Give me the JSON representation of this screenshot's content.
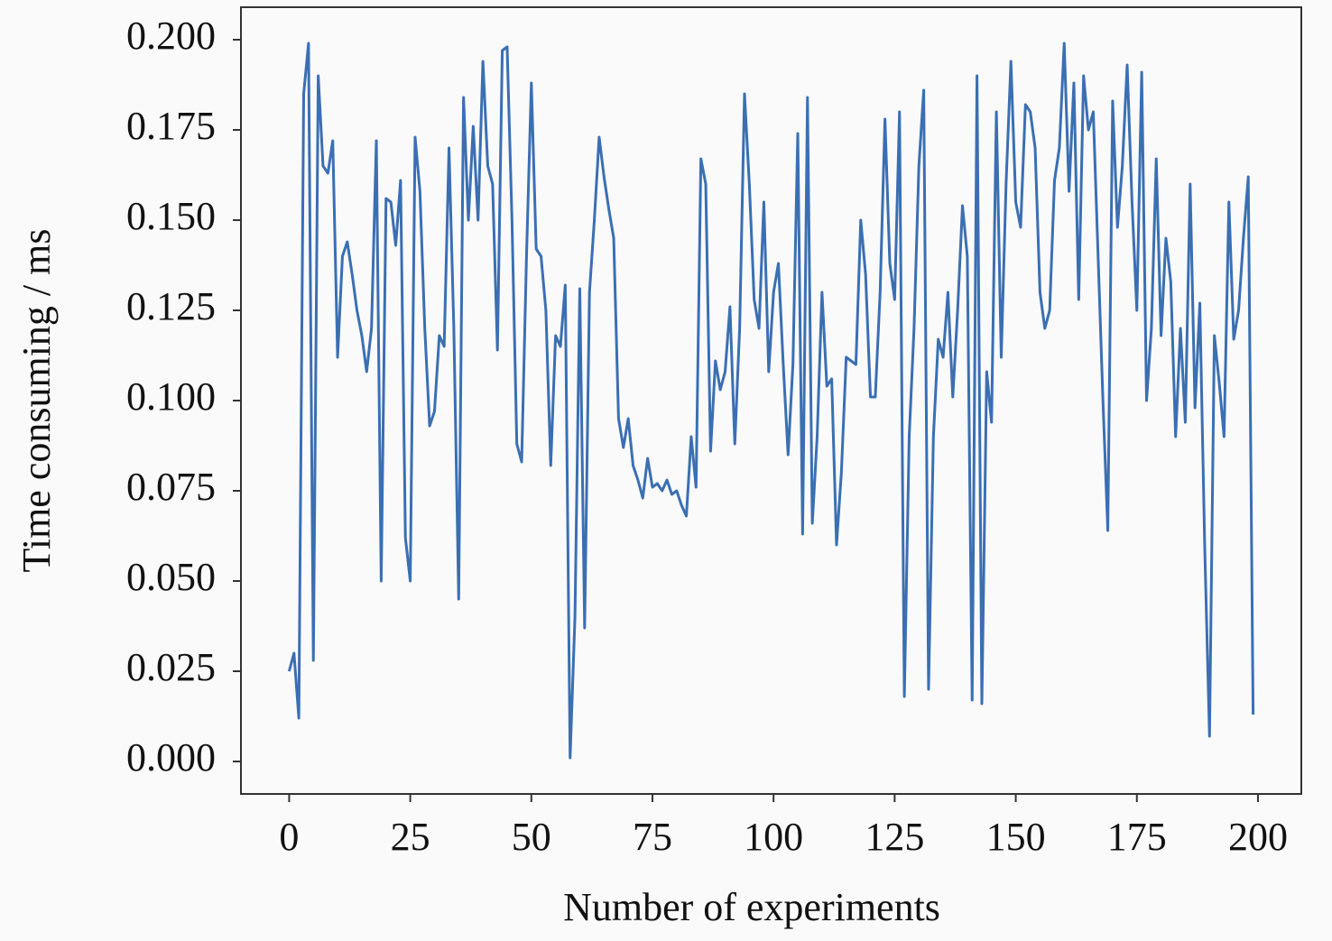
{
  "chart_data": {
    "type": "line",
    "xlabel": "Number of experiments",
    "ylabel": "Time consuming / ms",
    "color": "#3b6fb2",
    "x": [
      0,
      1,
      2,
      3,
      4,
      5,
      6,
      7,
      8,
      9,
      10,
      11,
      12,
      13,
      14,
      15,
      16,
      17,
      18,
      19,
      20,
      21,
      22,
      23,
      24,
      25,
      26,
      27,
      28,
      29,
      30,
      31,
      32,
      33,
      34,
      35,
      36,
      37,
      38,
      39,
      40,
      41,
      42,
      43,
      44,
      45,
      46,
      47,
      48,
      49,
      50,
      51,
      52,
      53,
      54,
      55,
      56,
      57,
      58,
      59,
      60,
      61,
      62,
      63,
      64,
      65,
      66,
      67,
      68,
      69,
      70,
      71,
      72,
      73,
      74,
      75,
      76,
      77,
      78,
      79,
      80,
      81,
      82,
      83,
      84,
      85,
      86,
      87,
      88,
      89,
      90,
      91,
      92,
      93,
      94,
      95,
      96,
      97,
      98,
      99,
      100,
      101,
      102,
      103,
      104,
      105,
      106,
      107,
      108,
      109,
      110,
      111,
      112,
      113,
      114,
      115,
      116,
      117,
      118,
      119,
      120,
      121,
      122,
      123,
      124,
      125,
      126,
      127,
      128,
      129,
      130,
      131,
      132,
      133,
      134,
      135,
      136,
      137,
      138,
      139,
      140,
      141,
      142,
      143,
      144,
      145,
      146,
      147,
      148,
      149,
      150,
      151,
      152,
      153,
      154,
      155,
      156,
      157,
      158,
      159,
      160,
      161,
      162,
      163,
      164,
      165,
      166,
      167,
      168,
      169,
      170,
      171,
      172,
      173,
      174,
      175,
      176,
      177,
      178,
      179,
      180,
      181,
      182,
      183,
      184,
      185,
      186,
      187,
      188,
      189,
      190,
      191,
      192,
      193,
      194,
      195,
      196,
      197,
      198,
      199
    ],
    "values": [
      0.025,
      0.03,
      0.012,
      0.185,
      0.199,
      0.028,
      0.19,
      0.165,
      0.163,
      0.172,
      0.112,
      0.14,
      0.144,
      0.135,
      0.125,
      0.118,
      0.108,
      0.12,
      0.172,
      0.05,
      0.156,
      0.155,
      0.143,
      0.161,
      0.062,
      0.05,
      0.173,
      0.158,
      0.12,
      0.093,
      0.097,
      0.118,
      0.115,
      0.17,
      0.12,
      0.045,
      0.184,
      0.15,
      0.176,
      0.15,
      0.194,
      0.165,
      0.16,
      0.114,
      0.197,
      0.198,
      0.15,
      0.088,
      0.083,
      0.14,
      0.188,
      0.142,
      0.14,
      0.125,
      0.082,
      0.118,
      0.115,
      0.132,
      0.001,
      0.04,
      0.131,
      0.037,
      0.13,
      0.15,
      0.173,
      0.162,
      0.153,
      0.145,
      0.095,
      0.087,
      0.095,
      0.082,
      0.078,
      0.073,
      0.084,
      0.076,
      0.077,
      0.075,
      0.078,
      0.074,
      0.075,
      0.071,
      0.068,
      0.09,
      0.076,
      0.167,
      0.16,
      0.086,
      0.111,
      0.103,
      0.108,
      0.126,
      0.088,
      0.12,
      0.185,
      0.16,
      0.128,
      0.12,
      0.155,
      0.108,
      0.13,
      0.138,
      0.11,
      0.085,
      0.11,
      0.174,
      0.063,
      0.184,
      0.066,
      0.09,
      0.13,
      0.104,
      0.106,
      0.06,
      0.08,
      0.112,
      0.111,
      0.11,
      0.15,
      0.135,
      0.101,
      0.101,
      0.13,
      0.178,
      0.138,
      0.128,
      0.18,
      0.018,
      0.09,
      0.12,
      0.165,
      0.186,
      0.02,
      0.09,
      0.117,
      0.112,
      0.13,
      0.101,
      0.125,
      0.154,
      0.14,
      0.017,
      0.19,
      0.016,
      0.108,
      0.094,
      0.18,
      0.112,
      0.16,
      0.194,
      0.155,
      0.148,
      0.182,
      0.18,
      0.17,
      0.13,
      0.12,
      0.125,
      0.161,
      0.17,
      0.199,
      0.158,
      0.188,
      0.128,
      0.19,
      0.175,
      0.18,
      0.14,
      0.1,
      0.064,
      0.183,
      0.148,
      0.165,
      0.193,
      0.155,
      0.125,
      0.191,
      0.1,
      0.12,
      0.167,
      0.118,
      0.145,
      0.133,
      0.09,
      0.12,
      0.094,
      0.16,
      0.098,
      0.127,
      0.06,
      0.007,
      0.118,
      0.105,
      0.09,
      0.155,
      0.117,
      0.125,
      0.145,
      0.162,
      0.013
    ],
    "xlim": [
      -9.95,
      208.95
    ],
    "xticks": [
      0,
      25,
      50,
      75,
      100,
      125,
      150,
      175,
      200
    ],
    "ylim": [
      -0.009,
      0.209
    ],
    "yticks": [
      {
        "value": 0,
        "label": "0.000"
      },
      {
        "value": 0.025,
        "label": "0.025"
      },
      {
        "value": 0.05,
        "label": "0.050"
      },
      {
        "value": 0.075,
        "label": "0.075"
      },
      {
        "value": 0.1,
        "label": "0.100"
      },
      {
        "value": 0.125,
        "label": "0.125"
      },
      {
        "value": 0.15,
        "label": "0.150"
      },
      {
        "value": 0.175,
        "label": "0.175"
      },
      {
        "value": 0.2,
        "label": "0.200"
      }
    ],
    "grid": false
  }
}
